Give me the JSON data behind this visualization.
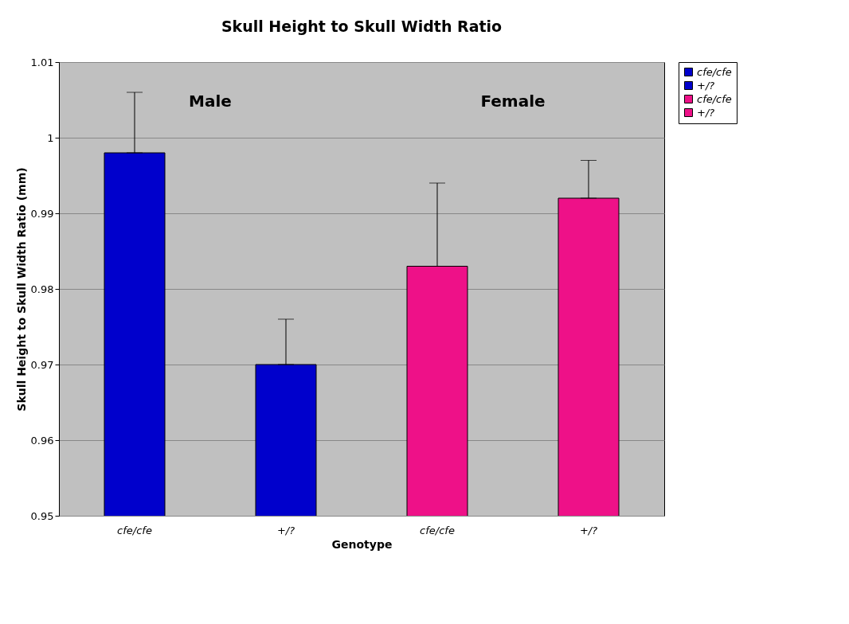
{
  "chart_data": {
    "type": "bar",
    "title": "Skull Height to Skull Width Ratio",
    "xlabel": "Genotype",
    "ylabel": "Skull Height to Skull Width Ratio (mm)",
    "categories": [
      "cfe/cfe",
      "+/?",
      "cfe/cfe",
      "+/?"
    ],
    "series": [
      {
        "name": "cfe/cfe",
        "color": "#0000cc",
        "values": [
          0.998,
          null,
          null,
          null
        ],
        "errors": [
          [
            0.998,
            1.006
          ],
          null,
          null,
          null
        ]
      },
      {
        "name": "+/?",
        "color": "#0000cc",
        "values": [
          null,
          0.97,
          null,
          null
        ],
        "errors": [
          null,
          [
            0.97,
            0.976
          ],
          null,
          null
        ]
      },
      {
        "name": "cfe/cfe",
        "color": "#ee1188",
        "values": [
          null,
          null,
          0.983,
          null
        ],
        "errors": [
          null,
          null,
          [
            0.983,
            0.994
          ],
          null
        ]
      },
      {
        "name": "+/?",
        "color": "#ee1188",
        "values": [
          null,
          null,
          null,
          0.992
        ],
        "errors": [
          null,
          null,
          null,
          [
            0.992,
            0.997
          ]
        ]
      }
    ],
    "annotations": [
      "Male",
      "Female"
    ],
    "ylim": [
      0.95,
      1.01
    ],
    "yticks": [
      0.95,
      0.96,
      0.97,
      0.98,
      0.99,
      1,
      1.01
    ],
    "grid": "y",
    "legend": "right"
  }
}
